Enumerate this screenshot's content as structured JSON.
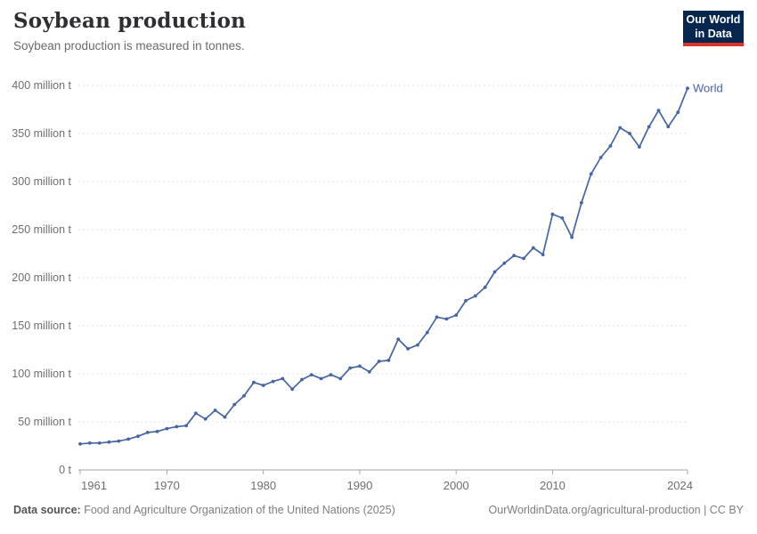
{
  "header": {
    "title": "Soybean production",
    "subtitle": "Soybean production is measured in tonnes."
  },
  "logo": {
    "line1": "Our World",
    "line2": "in Data",
    "bg_color": "#06264d",
    "accent_color": "#dc3227"
  },
  "footer": {
    "source_label": "Data source:",
    "source_text": "Food and Agriculture Organization of the United Nations (2025)",
    "credit": "OurWorldinData.org/agricultural-production | CC BY"
  },
  "chart_data": {
    "type": "line",
    "title": "Soybean production",
    "unit": "tonnes",
    "xlabel": "",
    "ylabel": "",
    "xlim": [
      1961,
      2024
    ],
    "ylim": [
      0,
      400000000
    ],
    "grid": "horizontal-dashed",
    "legend_position": "end-of-line",
    "yticks": [
      {
        "value": 0,
        "label": "0 t"
      },
      {
        "value": 50,
        "label": "50 million t"
      },
      {
        "value": 100,
        "label": "100 million t"
      },
      {
        "value": 150,
        "label": "150 million t"
      },
      {
        "value": 200,
        "label": "200 million t"
      },
      {
        "value": 250,
        "label": "250 million t"
      },
      {
        "value": 300,
        "label": "300 million t"
      },
      {
        "value": 350,
        "label": "350 million t"
      },
      {
        "value": 400,
        "label": "400 million t"
      }
    ],
    "xticks": [
      {
        "year": 1961,
        "label": "1961",
        "anchor": "start"
      },
      {
        "year": 1970,
        "label": "1970",
        "anchor": "middle"
      },
      {
        "year": 1980,
        "label": "1980",
        "anchor": "middle"
      },
      {
        "year": 1990,
        "label": "1990",
        "anchor": "middle"
      },
      {
        "year": 2000,
        "label": "2000",
        "anchor": "middle"
      },
      {
        "year": 2010,
        "label": "2010",
        "anchor": "middle"
      },
      {
        "year": 2024,
        "label": "2024",
        "anchor": "end"
      }
    ],
    "series": [
      {
        "name": "World",
        "color": "#4665a3",
        "unit_scale": "million tonnes",
        "x": [
          1961,
          1962,
          1963,
          1964,
          1965,
          1966,
          1967,
          1968,
          1969,
          1970,
          1971,
          1972,
          1973,
          1974,
          1975,
          1976,
          1977,
          1978,
          1979,
          1980,
          1981,
          1982,
          1983,
          1984,
          1985,
          1986,
          1987,
          1988,
          1989,
          1990,
          1991,
          1992,
          1993,
          1994,
          1995,
          1996,
          1997,
          1998,
          1999,
          2000,
          2001,
          2002,
          2003,
          2004,
          2005,
          2006,
          2007,
          2008,
          2009,
          2010,
          2011,
          2012,
          2013,
          2014,
          2015,
          2016,
          2017,
          2018,
          2019,
          2020,
          2021,
          2022,
          2023,
          2024
        ],
        "values": [
          27,
          28,
          28,
          29,
          30,
          32,
          35,
          39,
          40,
          43,
          45,
          46,
          59,
          53,
          62,
          55,
          68,
          77,
          91,
          88,
          92,
          95,
          84,
          94,
          99,
          95,
          99,
          95,
          106,
          108,
          102,
          113,
          114,
          136,
          126,
          130,
          143,
          159,
          157,
          161,
          176,
          181,
          190,
          206,
          215,
          223,
          220,
          231,
          224,
          266,
          262,
          242,
          278,
          308,
          325,
          337,
          356,
          350,
          336,
          357,
          374,
          357,
          372,
          397
        ]
      }
    ]
  }
}
